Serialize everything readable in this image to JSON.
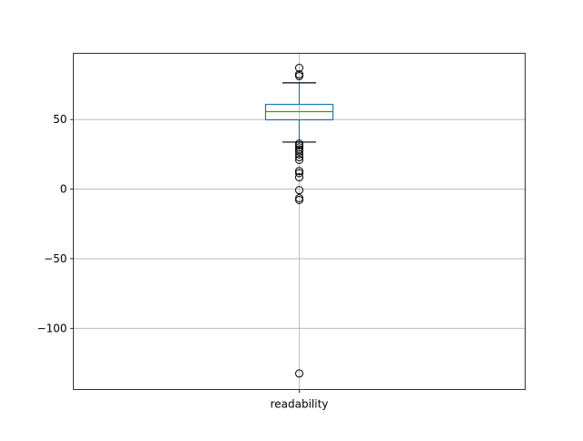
{
  "chart_data": {
    "type": "box",
    "title": "",
    "xlabel": "",
    "ylabel": "",
    "categories": [
      "readability"
    ],
    "ylim": [
      -144,
      97.6
    ],
    "yticks": [
      -100,
      -50,
      0,
      50
    ],
    "ytick_labels": [
      "−100",
      "−50",
      "0",
      "50"
    ],
    "grid": true,
    "colors": {
      "box": "#1f77b4",
      "median": "#2ca02c",
      "whisker_cap": "#000000",
      "grid": "#b0b0b0"
    },
    "boxes": [
      {
        "name": "readability",
        "whisker_low": 33.8,
        "q1": 49.8,
        "median": 55.7,
        "q3": 60.9,
        "whisker_high": 76.4,
        "outliers": [
          87.1,
          82.5,
          81.2,
          32.7,
          31.5,
          30,
          28.5,
          27,
          25,
          23,
          21,
          13,
          11.5,
          8.5,
          -0.7,
          -6.5,
          -7.8,
          -132.5
        ]
      }
    ]
  }
}
